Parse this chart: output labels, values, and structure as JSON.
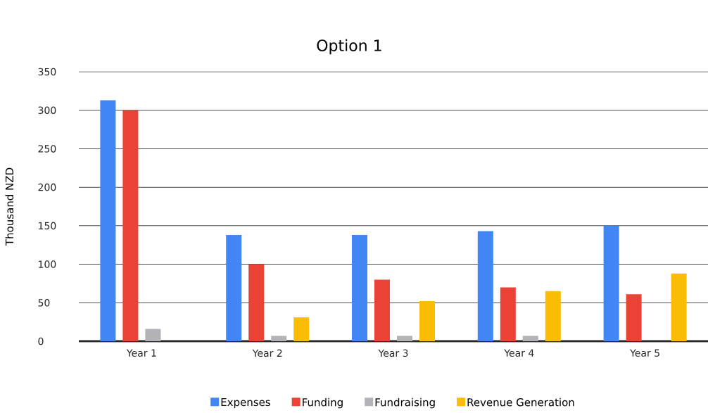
{
  "chart_data": {
    "type": "bar",
    "title": "Option 1",
    "ylabel": "Thousand NZD",
    "categories": [
      "Year 1",
      "Year 2",
      "Year 3",
      "Year 4",
      "Year 5"
    ],
    "series": [
      {
        "name": "Expenses",
        "color": "#4285f4",
        "values": [
          313,
          138,
          138,
          143,
          150
        ]
      },
      {
        "name": "Funding",
        "color": "#ea4335",
        "values": [
          300,
          100,
          80,
          70,
          61
        ]
      },
      {
        "name": "Fundraising",
        "color": "#b2b3b6",
        "values": [
          16,
          7,
          7,
          7,
          0
        ]
      },
      {
        "name": "Revenue Generation",
        "color": "#fbbc04",
        "values": [
          0,
          31,
          52,
          65,
          88
        ]
      }
    ],
    "ylim": [
      0,
      350
    ],
    "yticks": [
      0,
      50,
      100,
      150,
      200,
      250,
      300,
      350
    ],
    "grid": "y",
    "legend": "bottom"
  }
}
